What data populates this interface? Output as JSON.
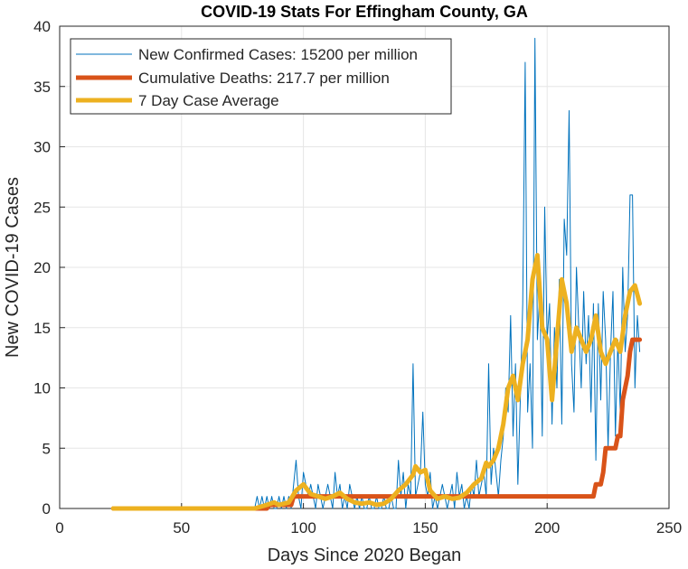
{
  "chart_data": {
    "type": "line",
    "title": "COVID-19 Stats For Effingham County, GA",
    "xlabel": "Days Since 2020 Began",
    "ylabel": "New COVID-19 Cases",
    "xlim": [
      0,
      250
    ],
    "ylim": [
      0,
      40
    ],
    "xticks": [
      0,
      50,
      100,
      150,
      200,
      250
    ],
    "yticks": [
      0,
      5,
      10,
      15,
      20,
      25,
      30,
      35,
      40
    ],
    "grid": true,
    "legend_position": "top-left",
    "series": [
      {
        "name": "New Confirmed Cases: 15200 per million",
        "color": "#0072BD",
        "x": [
          22,
          80,
          81,
          82,
          83,
          84,
          85,
          86,
          87,
          88,
          89,
          90,
          91,
          92,
          93,
          94,
          95,
          96,
          97,
          98,
          99,
          100,
          101,
          102,
          103,
          104,
          105,
          106,
          107,
          108,
          109,
          110,
          111,
          112,
          113,
          114,
          115,
          116,
          117,
          118,
          119,
          120,
          121,
          122,
          123,
          124,
          125,
          126,
          127,
          128,
          129,
          130,
          131,
          132,
          133,
          134,
          135,
          136,
          137,
          138,
          139,
          140,
          141,
          142,
          143,
          144,
          145,
          146,
          147,
          148,
          149,
          150,
          151,
          152,
          153,
          154,
          155,
          156,
          157,
          158,
          159,
          160,
          161,
          162,
          163,
          164,
          165,
          166,
          167,
          168,
          169,
          170,
          171,
          172,
          173,
          174,
          175,
          176,
          177,
          178,
          179,
          180,
          181,
          182,
          183,
          184,
          185,
          186,
          187,
          188,
          189,
          190,
          191,
          192,
          193,
          194,
          195,
          196,
          197,
          198,
          199,
          200,
          201,
          202,
          203,
          204,
          205,
          206,
          207,
          208,
          209,
          210,
          211,
          212,
          213,
          214,
          215,
          216,
          217,
          218,
          219,
          220,
          221,
          222,
          223,
          224,
          225,
          226,
          227,
          228,
          229,
          230,
          231,
          232,
          233,
          234,
          235,
          236,
          237,
          238
        ],
        "y": [
          0,
          0,
          1,
          0,
          1,
          0,
          1,
          0,
          1,
          0,
          0,
          1,
          0,
          1,
          0,
          1,
          0,
          2,
          4,
          1,
          0,
          3,
          2,
          1,
          2,
          1,
          0,
          2,
          1,
          0,
          1,
          2,
          1,
          0,
          3,
          1,
          2,
          0,
          1,
          0,
          2,
          1,
          0,
          1,
          0,
          1,
          0,
          0,
          1,
          0,
          0,
          1,
          0,
          0,
          1,
          0,
          0,
          1,
          0,
          0,
          4,
          1,
          3,
          0,
          2,
          1,
          12,
          1,
          2,
          3,
          8,
          2,
          1,
          3,
          0,
          1,
          0,
          1,
          2,
          1,
          0,
          1,
          2,
          0,
          3,
          1,
          2,
          0,
          1,
          0,
          2,
          1,
          4,
          1,
          2,
          3,
          1,
          12,
          2,
          5,
          3,
          1,
          4,
          6,
          10,
          8,
          16,
          6,
          12,
          2,
          9,
          17,
          37,
          8,
          12,
          5,
          39,
          14,
          18,
          6,
          25,
          14,
          17,
          7,
          15,
          10,
          19,
          7,
          24,
          21,
          33,
          12,
          8,
          20,
          15,
          10,
          18,
          12,
          16,
          8,
          17,
          4,
          17,
          9,
          18,
          14,
          5,
          13,
          18,
          6,
          14,
          8,
          20,
          13,
          16,
          26,
          26,
          10,
          16,
          13
        ]
      },
      {
        "name": "Cumulative Deaths: 217.7 per million",
        "color": "#D95319",
        "x": [
          22,
          80,
          85,
          86,
          90,
          94,
          95,
          96,
          218,
          219,
          220,
          222,
          223,
          224,
          228,
          229,
          230,
          231,
          232,
          233,
          234,
          235,
          238
        ],
        "y": [
          0,
          0,
          0,
          0.3,
          0.3,
          0.3,
          0.3,
          1,
          1,
          1,
          2,
          2,
          3,
          5,
          5,
          6,
          6,
          9,
          10,
          11,
          13,
          14,
          14
        ]
      },
      {
        "name": "7 Day Case Average",
        "color": "#EDB120",
        "x": [
          22,
          80,
          85,
          88,
          90,
          94,
          97,
          100,
          103,
          106,
          109,
          112,
          115,
          118,
          121,
          124,
          127,
          130,
          133,
          136,
          139,
          142,
          145,
          146,
          148,
          150,
          152,
          155,
          158,
          161,
          164,
          167,
          170,
          173,
          175,
          176,
          178,
          180,
          182,
          184,
          186,
          188,
          190,
          192,
          194,
          196,
          198,
          200,
          202,
          204,
          206,
          208,
          210,
          212,
          214,
          216,
          218,
          220,
          222,
          224,
          226,
          228,
          230,
          232,
          234,
          236,
          238
        ],
        "y": [
          0,
          0,
          0.3,
          0.5,
          0.3,
          0.5,
          1.5,
          2,
          1.2,
          1,
          0.8,
          1,
          1.3,
          0.8,
          0.5,
          0.4,
          0.5,
          0.3,
          0.4,
          0.8,
          1.5,
          2,
          2.8,
          3.5,
          3,
          3.2,
          1.5,
          0.8,
          1,
          0.8,
          0.9,
          1.3,
          2,
          2.5,
          3.8,
          3.5,
          4,
          5,
          7,
          10,
          11,
          9,
          12,
          14,
          19,
          21,
          15,
          14,
          9,
          14,
          19,
          17,
          13,
          15,
          14,
          13,
          14,
          16,
          13,
          12,
          13,
          14,
          13,
          16,
          18,
          18.5,
          17
        ]
      }
    ]
  }
}
